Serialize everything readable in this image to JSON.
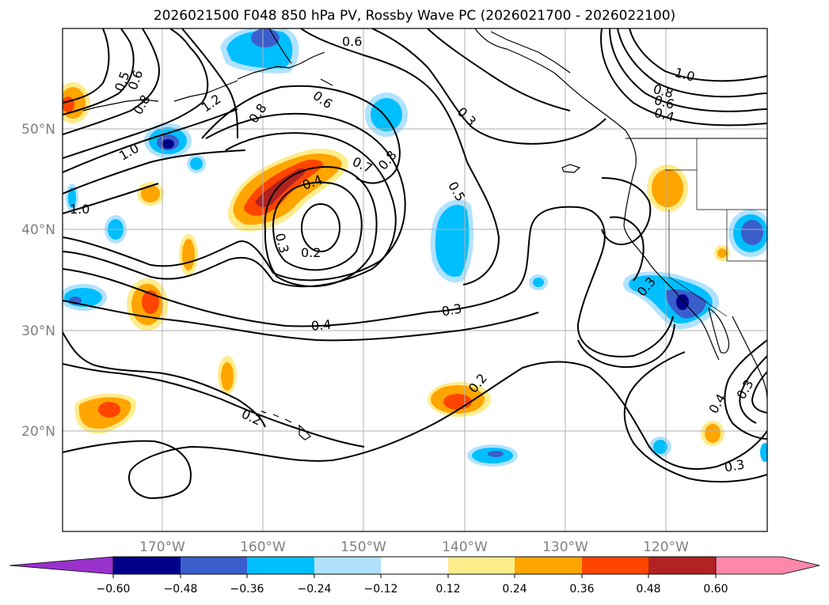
{
  "title": "2026021500 F048 850 hPa PV, Rossby Wave PC (2026021700 - 2026022100)",
  "map": {
    "projection": "lat-lon",
    "extent": {
      "lon_min": -180,
      "lon_max": -110,
      "lat_min": 10,
      "lat_max": 60
    },
    "gridlines": true,
    "lon_ticks": [
      {
        "value": -170,
        "label": "170°W"
      },
      {
        "value": -160,
        "label": "160°W"
      },
      {
        "value": -150,
        "label": "150°W"
      },
      {
        "value": -140,
        "label": "140°W"
      },
      {
        "value": -130,
        "label": "130°W"
      },
      {
        "value": -120,
        "label": "120°W"
      }
    ],
    "lat_ticks": [
      {
        "value": 20,
        "label": "20°N"
      },
      {
        "value": 30,
        "label": "30°N"
      },
      {
        "value": 40,
        "label": "40°N"
      },
      {
        "value": 50,
        "label": "50°N"
      }
    ]
  },
  "contour_labels": [
    "0.6",
    "0.5",
    "0.6",
    "0.8",
    "1.2",
    "0.8",
    "0.6",
    "0.3",
    "1.0",
    "0.8",
    "0.6",
    "0.4",
    "1.0",
    "0.7",
    "0.8",
    "0.4",
    "0.5",
    "1.0",
    "0.3",
    "0.2",
    "0.4",
    "0.3",
    "0.2",
    "0.2",
    "0.3",
    "0.4",
    "0.3",
    "0.3"
  ],
  "colorbar": {
    "extend": "both",
    "colors": [
      "#9932CC",
      "#9932CC",
      "#00008B",
      "#3A5FCD",
      "#00BFFF",
      "#B0E2FF",
      "#FFFFFF",
      "#FFEC8B",
      "#FFA500",
      "#FF4500",
      "#B22222",
      "#FF88AA",
      "#FF88AA"
    ],
    "tick_labels": [
      "−0.60",
      "−0.48",
      "−0.36",
      "−0.24",
      "−0.12",
      "0.12",
      "0.24",
      "0.36",
      "0.48",
      "0.60"
    ]
  },
  "colors": {
    "neg_1": "#B0E2FF",
    "neg_2": "#00BFFF",
    "neg_3": "#3A5FCD",
    "neg_4": "#00008B",
    "pos_1": "#FFEC8B",
    "pos_2": "#FFA500",
    "pos_3": "#FF4500",
    "pos_4": "#B22222"
  }
}
